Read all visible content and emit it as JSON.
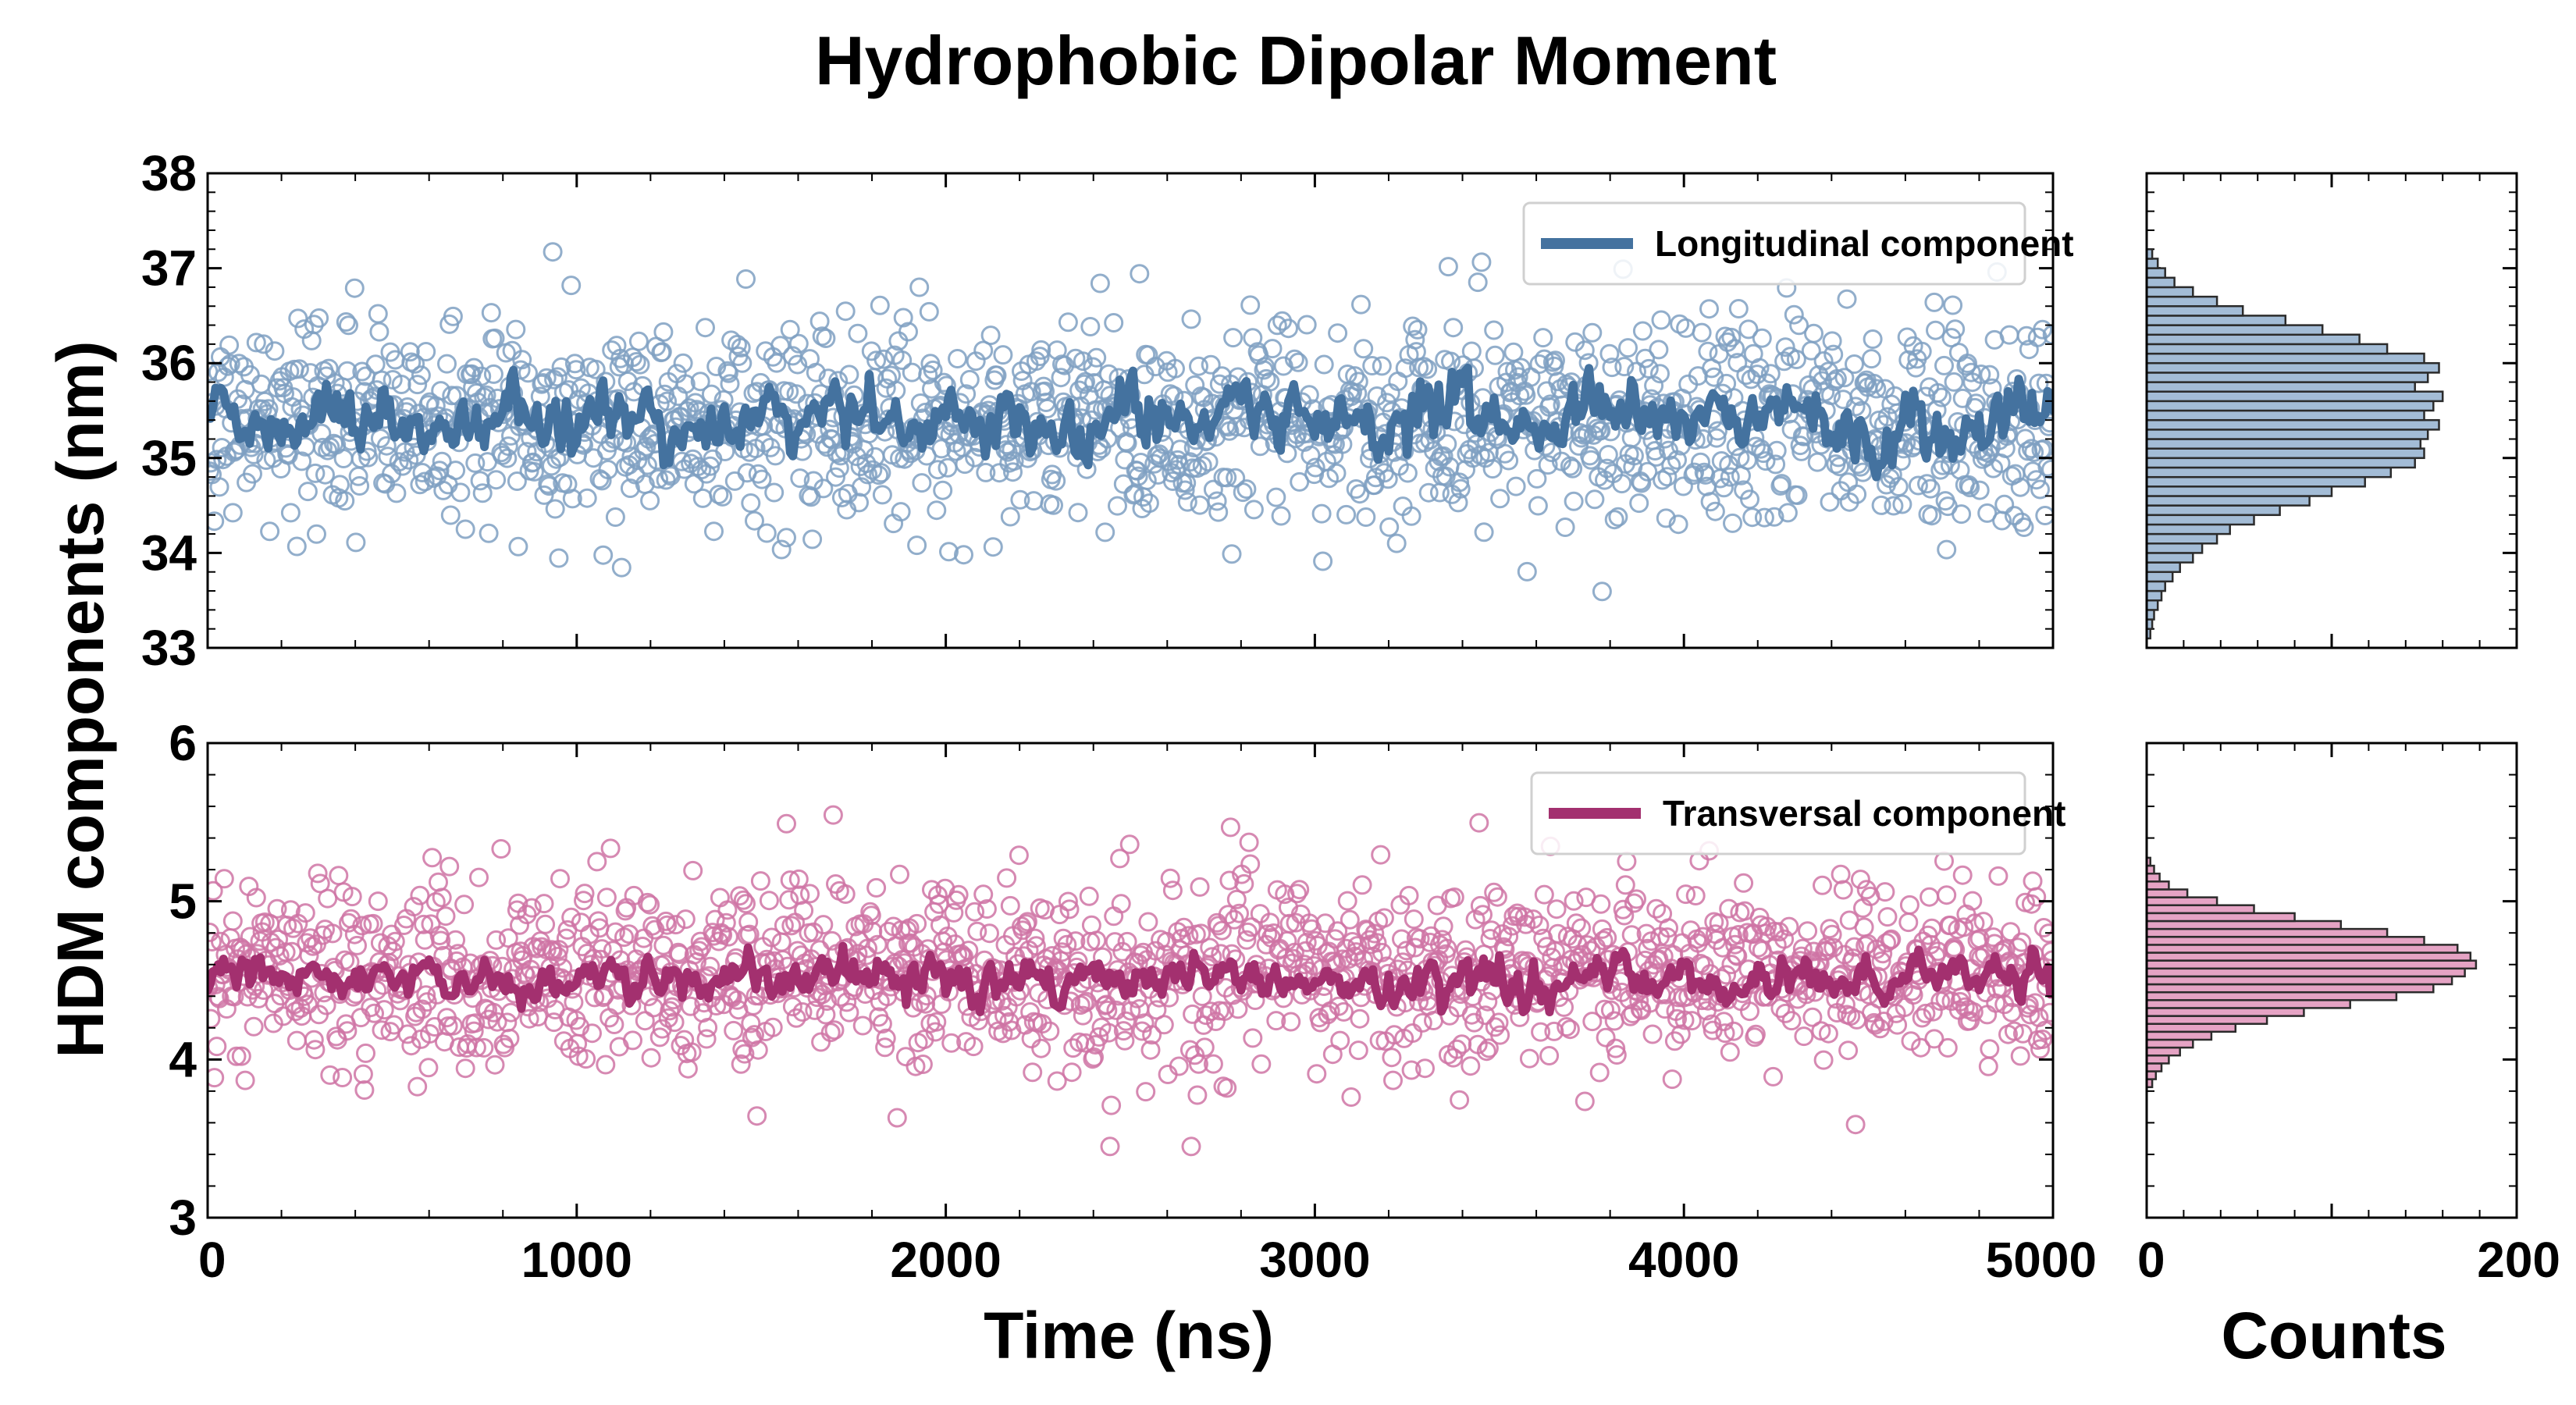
{
  "chart_data": {
    "type": "scatter",
    "title": "Hydrophobic Dipolar Moment",
    "ylabel": "HDM components (nm)",
    "xlabel": "Time (ns)",
    "hist_xlabel": "Counts",
    "xlim": [
      0,
      5000
    ],
    "xticks": [
      "0",
      "1000",
      "2000",
      "3000",
      "4000",
      "5000"
    ],
    "hist_xlim": [
      0,
      200
    ],
    "hist_xticks": [
      "0",
      "200"
    ],
    "panels": [
      {
        "name": "Longitudinal component",
        "legend_label": "Longitudinal component",
        "color": "#44729f",
        "marker_color": "#7fa0c2",
        "hist_fill": "#a3bcd6",
        "ylim": [
          33,
          38
        ],
        "yticks": [
          "33",
          "34",
          "35",
          "36",
          "37",
          "38"
        ],
        "scatter": {
          "n_points": 1500,
          "mean": 35.4,
          "sd": 0.55,
          "min": 33.1,
          "max": 37.2
        },
        "running_mean": {
          "mean": 35.4,
          "amplitude": 0.45,
          "min": 34.8,
          "max": 36.3
        },
        "histogram": {
          "bin_centers": [
            33.15,
            33.25,
            33.35,
            33.45,
            33.55,
            33.65,
            33.75,
            33.85,
            33.95,
            34.05,
            34.15,
            34.25,
            34.35,
            34.45,
            34.55,
            34.65,
            34.75,
            34.85,
            34.95,
            35.05,
            35.15,
            35.25,
            35.35,
            35.45,
            35.55,
            35.65,
            35.75,
            35.85,
            35.95,
            36.05,
            36.15,
            36.25,
            36.35,
            36.45,
            36.55,
            36.65,
            36.75,
            36.85,
            36.95,
            37.05,
            37.15
          ],
          "counts": [
            2,
            3,
            4,
            6,
            8,
            10,
            14,
            18,
            25,
            30,
            38,
            45,
            58,
            72,
            88,
            100,
            118,
            132,
            145,
            150,
            148,
            152,
            158,
            150,
            155,
            160,
            145,
            152,
            158,
            150,
            130,
            115,
            95,
            75,
            52,
            38,
            25,
            15,
            10,
            6,
            3
          ]
        }
      },
      {
        "name": "Transversal component",
        "legend_label": "Transversal component",
        "color": "#a3306f",
        "marker_color": "#cf74a5",
        "hist_fill": "#e5a3c4",
        "ylim": [
          3,
          6
        ],
        "yticks": [
          "3",
          "4",
          "5",
          "6"
        ],
        "scatter": {
          "n_points": 1500,
          "mean": 4.55,
          "sd": 0.3,
          "min": 3.45,
          "max": 5.55
        },
        "running_mean": {
          "mean": 4.5,
          "amplitude": 0.18,
          "min": 4.3,
          "max": 4.75
        },
        "histogram": {
          "bin_centers": [
            3.85,
            3.9,
            3.95,
            4.0,
            4.05,
            4.1,
            4.15,
            4.2,
            4.25,
            4.3,
            4.35,
            4.4,
            4.45,
            4.5,
            4.55,
            4.6,
            4.65,
            4.7,
            4.75,
            4.8,
            4.85,
            4.9,
            4.95,
            5.0,
            5.05,
            5.1,
            5.15,
            5.2,
            5.25
          ],
          "counts": [
            3,
            5,
            8,
            12,
            18,
            25,
            35,
            48,
            65,
            85,
            110,
            135,
            155,
            165,
            172,
            178,
            175,
            168,
            150,
            130,
            105,
            80,
            58,
            38,
            22,
            12,
            7,
            4,
            2
          ]
        }
      }
    ]
  }
}
